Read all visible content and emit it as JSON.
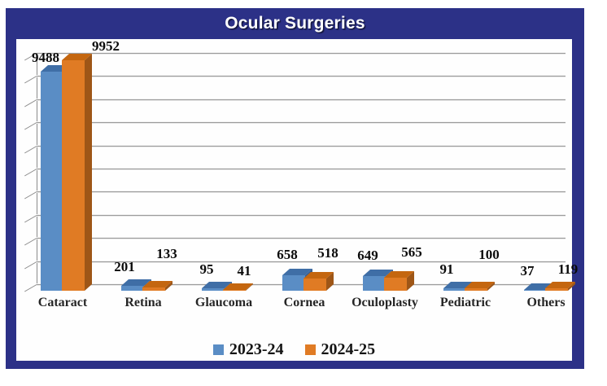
{
  "title": "Ocular Surgeries",
  "frame_color": "#2c3187",
  "chart_data": {
    "type": "bar",
    "style": "3d-clustered-column",
    "title": "Ocular Surgeries",
    "categories": [
      "Cataract",
      "Retina",
      "Glaucoma",
      "Cornea",
      "Oculoplasty",
      "Pediatric",
      "Others"
    ],
    "series": [
      {
        "name": "2023-24",
        "color": "#5a8dc5",
        "color_top": "#3f6ea6",
        "color_side": "#355f93",
        "values": [
          9488,
          201,
          95,
          658,
          649,
          91,
          37
        ]
      },
      {
        "name": "2024-25",
        "color": "#e07b24",
        "color_top": "#c4660f",
        "color_side": "#9e5617",
        "values": [
          9952,
          133,
          41,
          518,
          565,
          100,
          119
        ]
      }
    ],
    "value_labels": [
      [
        "9488",
        "201",
        "95",
        "658",
        "649",
        "91",
        "37"
      ],
      [
        "9952",
        "133",
        "41",
        "518",
        "565",
        "100",
        "119"
      ]
    ],
    "xlabel": "",
    "ylabel": "",
    "ylim": [
      0,
      10000
    ],
    "gridline_step": 1000,
    "grid": true,
    "legend_position": "bottom",
    "legend_entries": [
      "2023-24",
      "2024-25"
    ]
  }
}
